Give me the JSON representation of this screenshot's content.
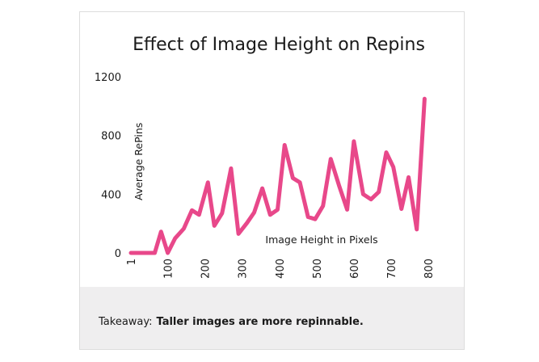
{
  "chart_data": {
    "type": "line",
    "title": "Effect of Image Height on Repins",
    "xlabel": "Image Height in Pixels",
    "ylabel": "Average RePins",
    "x": [
      1,
      65,
      82,
      100,
      120,
      143,
      165,
      184,
      208,
      225,
      246,
      270,
      290,
      313,
      332,
      354,
      375,
      395,
      414,
      436,
      455,
      477,
      496,
      517,
      538,
      560,
      582,
      600,
      625,
      646,
      667,
      687,
      706,
      728,
      747,
      769,
      790
    ],
    "series": [
      {
        "name": "Average RePins",
        "color": "#e8488a",
        "values": [
          0,
          0,
          145,
          0,
          100,
          165,
          290,
          260,
          480,
          185,
          270,
          575,
          130,
          205,
          275,
          440,
          260,
          295,
          735,
          510,
          480,
          245,
          230,
          320,
          640,
          460,
          295,
          760,
          400,
          365,
          415,
          685,
          585,
          300,
          515,
          160,
          1050
        ]
      }
    ],
    "xlim": [
      1,
      800
    ],
    "xticks": [
      1,
      100,
      200,
      300,
      400,
      500,
      600,
      700,
      800
    ],
    "ylim": [
      0,
      1200
    ],
    "yticks": [
      0,
      400,
      800,
      1200
    ],
    "grid": false,
    "footer": {
      "lead": "Takeaway:",
      "text": "Taller images are more repinnable."
    }
  }
}
